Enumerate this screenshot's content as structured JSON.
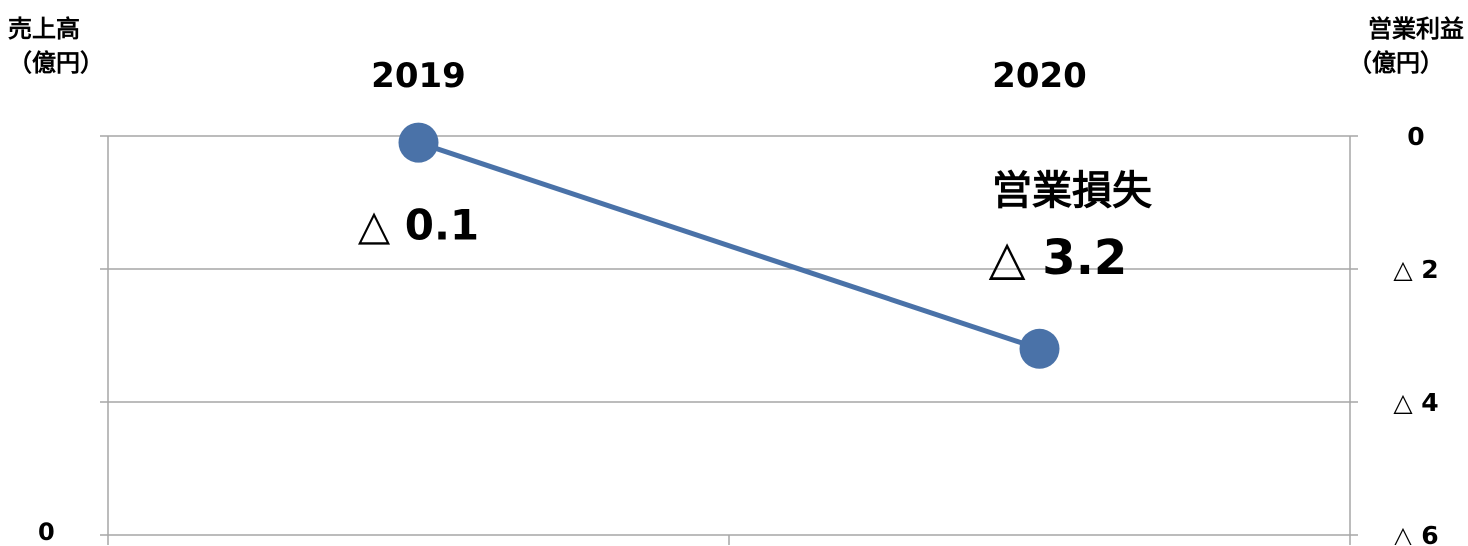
{
  "chart_data": {
    "type": "line",
    "categories": [
      "2019",
      "2020"
    ],
    "series": [
      {
        "values": [
          -0.1,
          -3.2
        ],
        "color": "#4a72a8",
        "labels": [
          "△ 0.1",
          "△ 3.2"
        ]
      }
    ],
    "y_right": {
      "title": "営業利益",
      "unit": "（億円）",
      "ylim": [
        -6,
        0
      ],
      "ticks": [
        0,
        -2,
        -4,
        -6
      ],
      "tick_labels": [
        "0",
        "△ 2",
        "△ 4",
        "△ 6"
      ]
    },
    "y_left": {
      "title": "売上高",
      "unit": "（億円）",
      "tick_labels": [
        "0"
      ]
    },
    "annotation": "営業損失",
    "grid": true
  }
}
